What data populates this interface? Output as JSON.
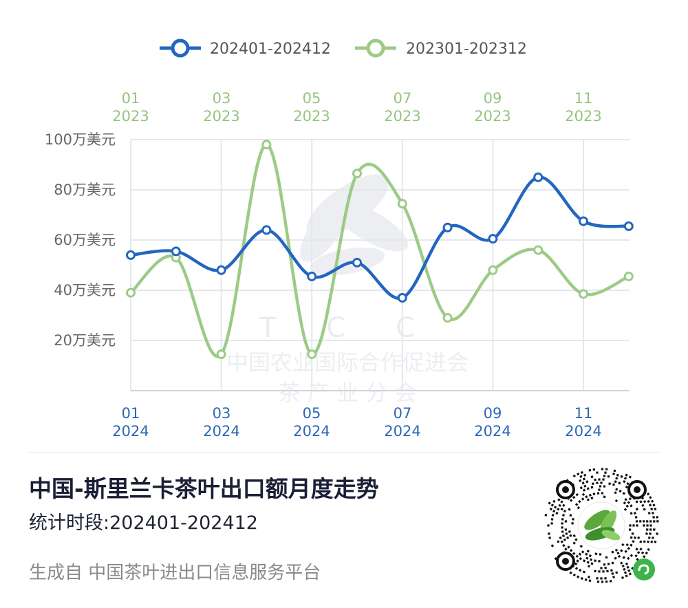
{
  "legend": [
    {
      "label": "202401-202412",
      "color": "#2366c0"
    },
    {
      "label": "202301-202312",
      "color": "#9ccb86"
    }
  ],
  "y_ticks": [
    "100万美元",
    "80万美元",
    "60万美元",
    "40万美元",
    "20万美元"
  ],
  "x_ticks_top": [
    {
      "m": "01",
      "y": "2023"
    },
    {
      "m": "03",
      "y": "2023"
    },
    {
      "m": "05",
      "y": "2023"
    },
    {
      "m": "07",
      "y": "2023"
    },
    {
      "m": "09",
      "y": "2023"
    },
    {
      "m": "11",
      "y": "2023"
    }
  ],
  "x_ticks_bottom": [
    {
      "m": "01",
      "y": "2024"
    },
    {
      "m": "03",
      "y": "2024"
    },
    {
      "m": "05",
      "y": "2024"
    },
    {
      "m": "07",
      "y": "2024"
    },
    {
      "m": "09",
      "y": "2024"
    },
    {
      "m": "11",
      "y": "2024"
    }
  ],
  "watermark": {
    "letters": "T C C",
    "line1": "中国农业国际合作促进会",
    "line2": "茶  产  业  分  会"
  },
  "chart_data": {
    "type": "line",
    "unit": "万美元",
    "ylim": [
      0,
      100
    ],
    "yticks": [
      20,
      40,
      60,
      80,
      100
    ],
    "grid": true,
    "legend_position": "top",
    "series": [
      {
        "name": "202401-202412",
        "color": "#2366c0",
        "x": [
          "202401",
          "202402",
          "202403",
          "202404",
          "202405",
          "202406",
          "202407",
          "202408",
          "202409",
          "202410",
          "202411",
          "202412"
        ],
        "values": [
          54,
          55.5,
          48,
          64,
          45.5,
          51,
          37,
          65,
          60.5,
          85,
          67.5,
          65.5
        ]
      },
      {
        "name": "202301-202312",
        "color": "#9ccb86",
        "x": [
          "202301",
          "202302",
          "202303",
          "202304",
          "202305",
          "202306",
          "202307",
          "202308",
          "202309",
          "202310",
          "202311",
          "202312"
        ],
        "values": [
          39,
          53,
          14.5,
          98,
          14.5,
          86.5,
          74.5,
          29,
          48,
          56,
          38.5,
          45.5
        ]
      }
    ]
  },
  "footer": {
    "title": "中国-斯里兰卡茶叶出口额月度走势",
    "period": "统计时段:202401-202412",
    "source": "生成自 中国茶叶进出口信息服务平台"
  }
}
